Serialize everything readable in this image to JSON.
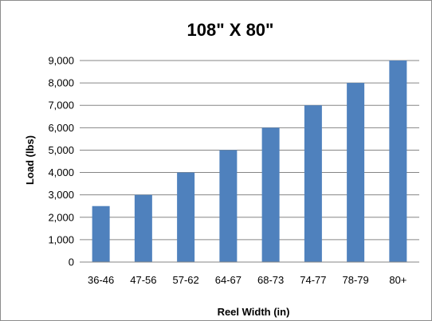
{
  "chart_data": {
    "type": "bar",
    "title": "108\" X 80\"",
    "xlabel": "Reel Width (in)",
    "ylabel": "Load (lbs)",
    "categories": [
      "36-46",
      "47-56",
      "57-62",
      "64-67",
      "68-73",
      "74-77",
      "78-79",
      "80+"
    ],
    "series": [
      {
        "values": [
          2500,
          3000,
          4000,
          5000,
          6000,
          7000,
          8000,
          9000
        ]
      }
    ],
    "ylim": [
      0,
      9000
    ],
    "yticks": [
      "0",
      "1,000",
      "2,000",
      "3,000",
      "4,000",
      "5,000",
      "6,000",
      "7,000",
      "8,000",
      "9,000"
    ],
    "grid": true,
    "legend": "none",
    "colors": {
      "bar": "#4f81bd",
      "grid": "#868686",
      "axis": "#868686"
    }
  }
}
